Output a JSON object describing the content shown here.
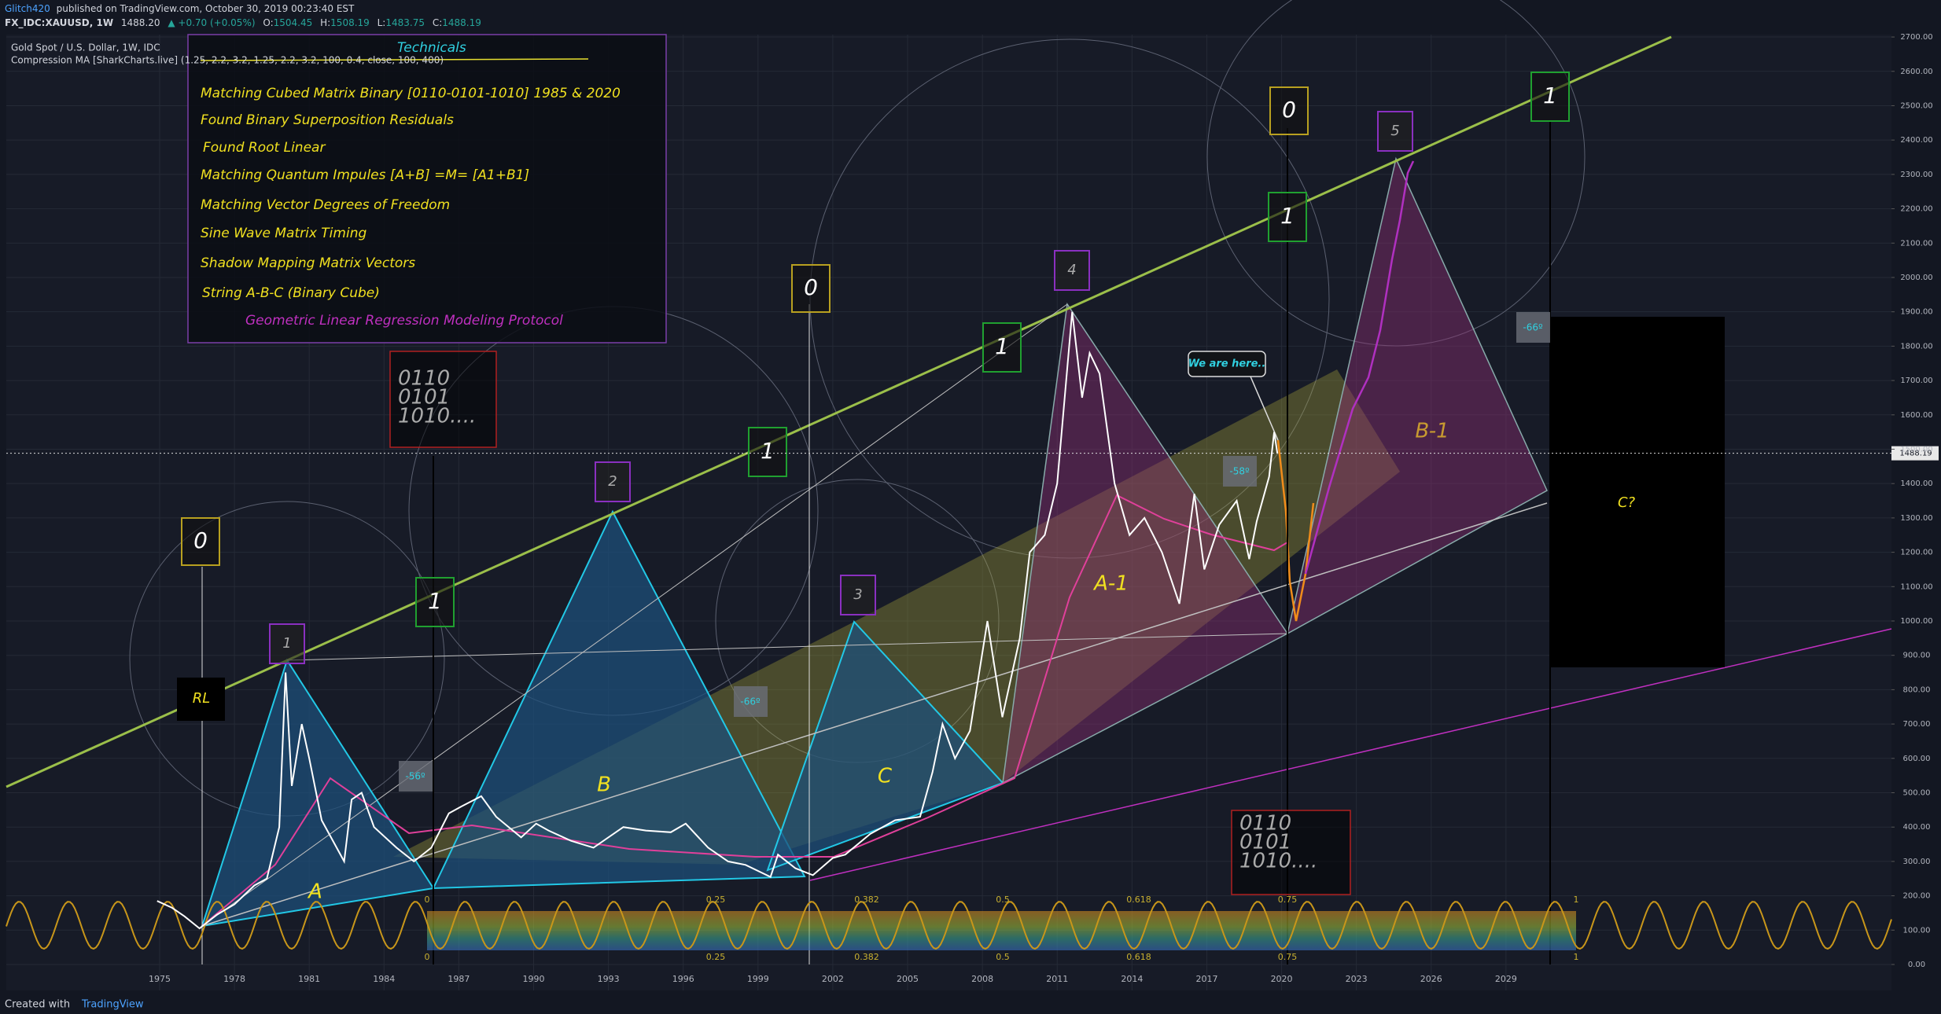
{
  "header": {
    "author": "Glitch420",
    "published": "published on TradingView.com, October 30, 2019 00:23:40 EST",
    "symbol": "FX_IDC:XAUUSD, 1W",
    "last": "1488.20",
    "change": "▲ +0.70 (+0.05%)",
    "ohlc": [
      {
        "key": "O:",
        "value": "1504.45"
      },
      {
        "key": "H:",
        "value": "1508.19"
      },
      {
        "key": "L:",
        "value": "1483.75"
      },
      {
        "key": "C:",
        "value": "1488.19"
      }
    ]
  },
  "legend": {
    "title": "Gold Spot / U.S. Dollar, 1W, IDC",
    "indicator": "Compression MA [SharkCharts.live] (1.25, 2.2, 3.2, 1.25, 2.2, 3.2, 100, 0.4, close, 100, 400)"
  },
  "annotations": {
    "technicals_title": "Technicals",
    "technicals": [
      "Matching Cubed Matrix Binary [0110-0101-1010]  1985 & 2020",
      "Found Binary Superposition Residuals",
      "Found Root Linear",
      "Matching Quantum Impules [A+B] =M= [A1+B1]",
      "Matching Vector Degrees of Freedom",
      "Sine Wave Matrix Timing",
      "Shadow Mapping Matrix Vectors",
      "String A-B-C  (Binary Cube)"
    ],
    "protocol": "Geometric Linear Regression Modeling Protocol",
    "binary": [
      "0110",
      "0101",
      "1010...."
    ],
    "zero": "0",
    "one": "1",
    "points": [
      "1",
      "2",
      "3",
      "4",
      "5"
    ],
    "rl": "RL",
    "legs": [
      "A",
      "B",
      "C",
      "A-1",
      "B-1",
      "C?"
    ],
    "angles": [
      "-56º",
      "-66º",
      "-58º",
      "-66º"
    ],
    "here": "We are here..",
    "fib_levels": [
      "0",
      "0.25",
      "0.382",
      "0.5",
      "0.618",
      "0.75",
      "1"
    ]
  },
  "chart_data": {
    "type": "line",
    "color": "#ffffff",
    "x": [
      1974.9,
      1975.5,
      1976.0,
      1976.6,
      1977.3,
      1978.0,
      1978.8,
      1979.3,
      1979.8,
      1980.05,
      1980.3,
      1980.7,
      1981.0,
      1981.5,
      1982.4,
      1982.7,
      1983.1,
      1983.6,
      1984.5,
      1985.2,
      1985.9,
      1986.6,
      1987.1,
      1987.9,
      1988.5,
      1989.5,
      1990.1,
      1990.6,
      1991.5,
      1992.4,
      1993.6,
      1994.5,
      1995.5,
      1996.1,
      1997.0,
      1997.8,
      1998.5,
      1999.5,
      1999.8,
      2000.5,
      2001.2,
      2002.0,
      2002.5,
      2003.5,
      2004.5,
      2005.5,
      2006.0,
      2006.4,
      2006.9,
      2007.5,
      2008.2,
      2008.8,
      2009.5,
      2009.9,
      2010.5,
      2011.0,
      2011.6,
      2012.0,
      2012.3,
      2012.7,
      2013.3,
      2013.9,
      2014.5,
      2015.2,
      2015.9,
      2016.5,
      2016.9,
      2017.5,
      2018.2,
      2018.7,
      2019.0,
      2019.5,
      2019.7,
      2019.83
    ],
    "values": [
      185,
      165,
      140,
      105,
      145,
      175,
      230,
      250,
      400,
      850,
      520,
      700,
      600,
      420,
      300,
      480,
      500,
      400,
      340,
      300,
      340,
      440,
      460,
      490,
      430,
      370,
      410,
      390,
      360,
      340,
      400,
      390,
      385,
      410,
      340,
      300,
      290,
      255,
      320,
      280,
      260,
      310,
      320,
      380,
      420,
      430,
      560,
      700,
      600,
      680,
      1000,
      720,
      950,
      1200,
      1250,
      1400,
      1900,
      1650,
      1780,
      1720,
      1400,
      1250,
      1300,
      1200,
      1050,
      1370,
      1150,
      1280,
      1350,
      1180,
      1290,
      1420,
      1550,
      1488.19
    ],
    "xlim": [
      1968.85,
      2044.46
    ],
    "ylim": [
      -75.5,
      2707
    ],
    "xticks": [
      1975,
      1978,
      1981,
      1984,
      1987,
      1990,
      1993,
      1996,
      1999,
      2002,
      2005,
      2008,
      2011,
      2014,
      2017,
      2020,
      2023,
      2026,
      2029
    ],
    "yticks": [
      {
        "value": 0,
        "label": "0.00"
      },
      {
        "value": 100,
        "label": "100.00"
      },
      {
        "value": 200,
        "label": "200.00"
      },
      {
        "value": 300,
        "label": "300.00"
      },
      {
        "value": 400,
        "label": "400.00"
      },
      {
        "value": 500,
        "label": "500.00"
      },
      {
        "value": 600,
        "label": "600.00"
      },
      {
        "value": 700,
        "label": "700.00"
      },
      {
        "value": 800,
        "label": "800.00"
      },
      {
        "value": 900,
        "label": "900.00"
      },
      {
        "value": 1000,
        "label": "1000.00"
      },
      {
        "value": 1100,
        "label": "1100.00"
      },
      {
        "value": 1200,
        "label": "1200.00"
      },
      {
        "value": 1300,
        "label": "1300.00"
      },
      {
        "value": 1400,
        "label": "1400.00"
      },
      {
        "value": 1500,
        "label": "1500.00"
      },
      {
        "value": 1600,
        "label": "1600.00"
      },
      {
        "value": 1700,
        "label": "1700.00"
      },
      {
        "value": 1800,
        "label": "1800.00"
      },
      {
        "value": 1900,
        "label": "1900.00"
      },
      {
        "value": 2000,
        "label": "2000.00"
      },
      {
        "value": 2100,
        "label": "2100.00"
      },
      {
        "value": 2200,
        "label": "2200.00"
      },
      {
        "value": 2300,
        "label": "2300.00"
      },
      {
        "value": 2400,
        "label": "2400.00"
      },
      {
        "value": 2500,
        "label": "2500.00"
      },
      {
        "value": 2600,
        "label": "2600.00"
      },
      {
        "value": 2700,
        "label": "2700.00"
      }
    ],
    "last_price": {
      "value": 1488.19,
      "label": "1488.19"
    },
    "grid": true
  },
  "footer": {
    "created": "Created with",
    "brand": "TradingView"
  }
}
